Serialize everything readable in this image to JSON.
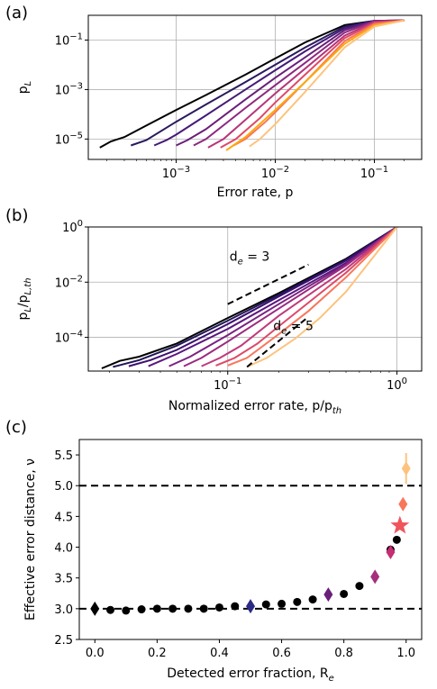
{
  "chart_data": [
    {
      "panel": "(a)",
      "type": "line",
      "xscale": "log",
      "yscale": "log",
      "xlabel": "Error rate, p",
      "ylabel": "p_L",
      "xlim": [
        0.00013,
        0.3
      ],
      "ylim": [
        1.5e-06,
        1.0
      ],
      "xtick_labels": [
        "10^-3",
        "10^-2",
        "10^-1"
      ],
      "ytick_labels": [
        "10^-1",
        "10^-3",
        "10^-5"
      ],
      "grid": true,
      "series": [
        {
          "color": "#000000",
          "x": [
            0.00017,
            0.00022,
            0.0003,
            0.0005,
            0.001,
            0.002,
            0.005,
            0.01,
            0.02,
            0.05,
            0.1,
            0.2
          ],
          "y": [
            4.5e-06,
            8e-06,
            1.2e-05,
            3.5e-05,
            0.00015,
            0.0006,
            0.004,
            0.018,
            0.08,
            0.4,
            0.6,
            0.62
          ]
        },
        {
          "color": "#2a1a5e",
          "x": [
            0.00035,
            0.0005,
            0.001,
            0.002,
            0.005,
            0.01,
            0.02,
            0.05,
            0.1,
            0.2
          ],
          "y": [
            5.5e-06,
            9e-06,
            5e-05,
            0.00025,
            0.002,
            0.01,
            0.05,
            0.35,
            0.6,
            0.62
          ]
        },
        {
          "color": "#451a78",
          "x": [
            0.0006,
            0.0008,
            0.001,
            0.002,
            0.005,
            0.01,
            0.02,
            0.05,
            0.1,
            0.2
          ],
          "y": [
            5.5e-06,
            9e-06,
            1.5e-05,
            9e-05,
            0.001,
            0.006,
            0.035,
            0.3,
            0.6,
            0.62
          ]
        },
        {
          "color": "#6a1f7a",
          "x": [
            0.001,
            0.0013,
            0.002,
            0.005,
            0.01,
            0.02,
            0.05,
            0.1,
            0.2
          ],
          "y": [
            5.5e-06,
            9e-06,
            2.5e-05,
            0.0004,
            0.003,
            0.02,
            0.25,
            0.6,
            0.62
          ]
        },
        {
          "color": "#8c2981",
          "x": [
            0.0015,
            0.002,
            0.005,
            0.01,
            0.02,
            0.05,
            0.1,
            0.2
          ],
          "y": [
            5.5e-06,
            1e-05,
            0.00018,
            0.0015,
            0.012,
            0.2,
            0.58,
            0.62
          ]
        },
        {
          "color": "#b5367a",
          "x": [
            0.0021,
            0.003,
            0.005,
            0.01,
            0.02,
            0.05,
            0.1,
            0.2
          ],
          "y": [
            4.5e-06,
            1e-05,
            6e-05,
            0.0007,
            0.007,
            0.15,
            0.55,
            0.62
          ]
        },
        {
          "color": "#de4968",
          "x": [
            0.0028,
            0.004,
            0.007,
            0.01,
            0.02,
            0.05,
            0.1,
            0.2
          ],
          "y": [
            4.5e-06,
            1e-05,
            7e-05,
            0.0003,
            0.004,
            0.12,
            0.5,
            0.62
          ]
        },
        {
          "color": "#f8765c",
          "x": [
            0.0038,
            0.005,
            0.008,
            0.01,
            0.02,
            0.05,
            0.1,
            0.2
          ],
          "y": [
            5.5e-06,
            1e-05,
            5e-05,
            0.00012,
            0.002,
            0.09,
            0.45,
            0.62
          ]
        },
        {
          "color": "#fca80e",
          "x": [
            0.0032,
            0.005,
            0.01,
            0.02,
            0.05,
            0.1,
            0.2
          ],
          "y": [
            3.5e-06,
            1.2e-05,
            0.00015,
            0.002,
            0.07,
            0.4,
            0.62
          ]
        },
        {
          "color": "#fdc37e",
          "x": [
            0.0055,
            0.007,
            0.01,
            0.02,
            0.05,
            0.1,
            0.2
          ],
          "y": [
            5e-06,
            1e-05,
            4e-05,
            0.0008,
            0.05,
            0.35,
            0.62
          ]
        }
      ]
    },
    {
      "panel": "(b)",
      "type": "line",
      "xscale": "log",
      "yscale": "log",
      "xlabel": "Normalized error rate, p/p_th",
      "ylabel": "p_L/p_L,th",
      "xlim": [
        0.015,
        1.4
      ],
      "ylim": [
        6e-06,
        1.0
      ],
      "xtick_labels": [
        "10^-1",
        "10^0"
      ],
      "ytick_labels": [
        "10^0",
        "10^-2",
        "10^-4"
      ],
      "grid": true,
      "annotations": [
        "d_e = 3",
        "d_e = 5"
      ],
      "series": [
        {
          "color": "#000000",
          "x": [
            0.018,
            0.023,
            0.03,
            0.05,
            0.1,
            0.2,
            0.5,
            1.0
          ],
          "y": [
            7.5e-06,
            1.4e-05,
            2e-05,
            6e-05,
            0.0005,
            0.004,
            0.07,
            1.0
          ]
        },
        {
          "color": "#1f1556",
          "x": [
            0.021,
            0.03,
            0.05,
            0.1,
            0.2,
            0.5,
            1.0
          ],
          "y": [
            8.5e-06,
            1.5e-05,
            5e-05,
            0.0004,
            0.0035,
            0.065,
            1.0
          ]
        },
        {
          "color": "#3b0f70",
          "x": [
            0.026,
            0.035,
            0.05,
            0.1,
            0.2,
            0.5,
            1.0
          ],
          "y": [
            9e-06,
            1.5e-05,
            3.5e-05,
            0.0003,
            0.003,
            0.06,
            1.0
          ]
        },
        {
          "color": "#5a167e",
          "x": [
            0.034,
            0.05,
            0.1,
            0.2,
            0.5,
            1.0
          ],
          "y": [
            9e-06,
            2.5e-05,
            0.0002,
            0.0022,
            0.05,
            1.0
          ]
        },
        {
          "color": "#7a2282",
          "x": [
            0.045,
            0.06,
            0.1,
            0.2,
            0.5,
            1.0
          ],
          "y": [
            9e-06,
            2e-05,
            0.00012,
            0.0016,
            0.045,
            1.0
          ]
        },
        {
          "color": "#9b2a80",
          "x": [
            0.055,
            0.07,
            0.1,
            0.2,
            0.5,
            1.0
          ],
          "y": [
            9e-06,
            1.8e-05,
            7e-05,
            0.0011,
            0.04,
            1.0
          ]
        },
        {
          "color": "#c0397a",
          "x": [
            0.07,
            0.09,
            0.12,
            0.2,
            0.5,
            1.0
          ],
          "y": [
            9e-06,
            1.8e-05,
            5e-05,
            0.0006,
            0.03,
            1.0
          ]
        },
        {
          "color": "#de4968",
          "x": [
            0.085,
            0.11,
            0.15,
            0.2,
            0.5,
            1.0
          ],
          "y": [
            9.5e-06,
            1.8e-05,
            6e-05,
            0.00025,
            0.022,
            1.0
          ]
        },
        {
          "color": "#f8765c",
          "x": [
            0.1,
            0.13,
            0.2,
            0.3,
            0.5,
            1.0
          ],
          "y": [
            9.5e-06,
            1.8e-05,
            0.00013,
            0.0009,
            0.015,
            1.0
          ]
        },
        {
          "color": "#fdc37e",
          "x": [
            0.13,
            0.17,
            0.25,
            0.35,
            0.5,
            1.0
          ],
          "y": [
            8.5e-06,
            1.8e-05,
            9e-05,
            0.0005,
            0.0045,
            1.0
          ]
        }
      ]
    },
    {
      "panel": "(c)",
      "type": "scatter",
      "xlabel": "Detected error fraction, R_e",
      "ylabel": "Effective error distance, ν",
      "xlim": [
        -0.05,
        1.05
      ],
      "ylim": [
        2.5,
        5.75
      ],
      "xtick_labels": [
        "0.0",
        "0.2",
        "0.4",
        "0.6",
        "0.8",
        "1.0"
      ],
      "ytick_labels": [
        "2.5",
        "3.0",
        "3.5",
        "4.0",
        "4.5",
        "5.0",
        "5.5"
      ],
      "hlines": [
        3.0,
        5.0
      ],
      "black_points": {
        "x": [
          0.05,
          0.1,
          0.15,
          0.2,
          0.25,
          0.3,
          0.35,
          0.4,
          0.45,
          0.55,
          0.6,
          0.65,
          0.7,
          0.8,
          0.85,
          0.95,
          0.97
        ],
        "y": [
          2.98,
          2.97,
          2.99,
          3.0,
          3.0,
          3.0,
          3.0,
          3.02,
          3.04,
          3.07,
          3.08,
          3.11,
          3.15,
          3.24,
          3.37,
          3.96,
          4.12
        ]
      },
      "colored_points": [
        {
          "x": 0.0,
          "y": 3.0,
          "marker": "diamond",
          "color": "#000000"
        },
        {
          "x": 0.5,
          "y": 3.04,
          "marker": "diamond",
          "color": "#2b2a86"
        },
        {
          "x": 0.75,
          "y": 3.23,
          "marker": "diamond",
          "color": "#6a1f7a"
        },
        {
          "x": 0.9,
          "y": 3.52,
          "marker": "diamond",
          "color": "#a4307d"
        },
        {
          "x": 0.95,
          "y": 3.92,
          "marker": "diamond",
          "color": "#c62d74"
        },
        {
          "x": 0.98,
          "y": 4.35,
          "marker": "star",
          "color": "#f0555c"
        },
        {
          "x": 0.99,
          "y": 4.7,
          "marker": "diamond",
          "color": "#f8765c"
        },
        {
          "x": 1.0,
          "y": 5.28,
          "marker": "diamond",
          "color": "#fdc37e",
          "err": 0.25
        }
      ]
    }
  ]
}
